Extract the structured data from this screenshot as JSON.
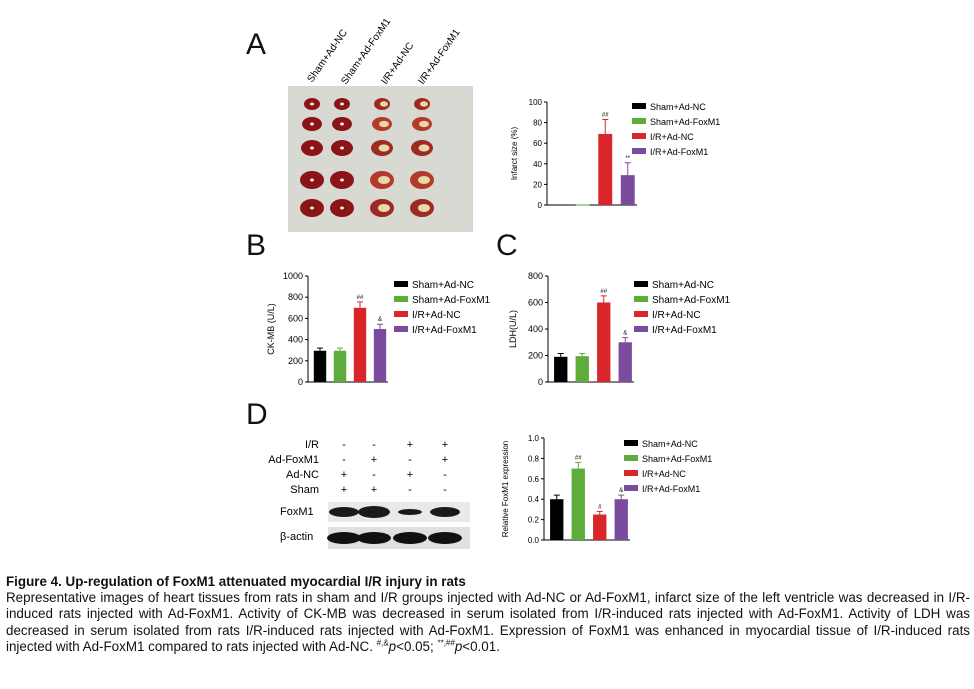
{
  "panels": {
    "a": "A",
    "b": "B",
    "c": "C",
    "d": "D"
  },
  "colors": {
    "sham_nc": "#000000",
    "sham_fox": "#5dac3c",
    "ir_nc": "#d8262a",
    "ir_fox": "#7b4c9e"
  },
  "heart_image": {
    "column_labels": [
      "Sham+Ad-NC",
      "Sham+Ad-FoxM1",
      "I/R+Ad-NC",
      "I/R+Ad-FoxM1"
    ]
  },
  "legend": [
    "Sham+Ad-NC",
    "Sham+Ad-FoxM1",
    "I/R+Ad-NC",
    "I/R+Ad-FoxM1"
  ],
  "chart_data": [
    {
      "type": "bar",
      "ylabel": "Infarct size (%)",
      "categories": [
        "Sham+Ad-NC",
        "Sham+Ad-FoxM1",
        "I/R+Ad-NC",
        "I/R+Ad-FoxM1"
      ],
      "values": [
        0.5,
        0.5,
        69,
        29
      ],
      "errors": [
        0,
        0,
        14,
        12
      ],
      "annotations": [
        "",
        "",
        "##",
        "**"
      ],
      "ylim": [
        0,
        100
      ],
      "yticks": [
        "0",
        "20",
        "40",
        "60",
        "80",
        "100"
      ]
    },
    {
      "type": "bar",
      "ylabel": "CK-MB (U/L)",
      "categories": [
        "Sham+Ad-NC",
        "Sham+Ad-FoxM1",
        "I/R+Ad-NC",
        "I/R+Ad-FoxM1"
      ],
      "values": [
        295,
        295,
        700,
        500
      ],
      "errors": [
        25,
        25,
        55,
        45
      ],
      "annotations": [
        "",
        "",
        "##",
        "&"
      ],
      "ylim": [
        0,
        1000
      ],
      "yticks": [
        "0",
        "200",
        "400",
        "600",
        "800",
        "1000"
      ]
    },
    {
      "type": "bar",
      "ylabel": "LDH(U/L)",
      "categories": [
        "Sham+Ad-NC",
        "Sham+Ad-FoxM1",
        "I/R+Ad-NC",
        "I/R+Ad-FoxM1"
      ],
      "values": [
        190,
        195,
        600,
        300
      ],
      "errors": [
        25,
        20,
        50,
        35
      ],
      "annotations": [
        "",
        "",
        "##",
        "&"
      ],
      "ylim": [
        0,
        800
      ],
      "yticks": [
        "0",
        "200",
        "400",
        "600",
        "800"
      ]
    },
    {
      "type": "bar",
      "ylabel": "Relative FoxM1 expression",
      "categories": [
        "Sham+Ad-NC",
        "Sham+Ad-FoxM1",
        "I/R+Ad-NC",
        "I/R+Ad-FoxM1"
      ],
      "values": [
        0.4,
        0.7,
        0.25,
        0.4
      ],
      "errors": [
        0.04,
        0.06,
        0.03,
        0.04
      ],
      "annotations": [
        "",
        "##",
        "#",
        "&"
      ],
      "ylim": [
        0,
        1.0
      ],
      "yticks": [
        "0.0",
        "0.2",
        "0.4",
        "0.6",
        "0.8",
        "1.0"
      ]
    }
  ],
  "western": {
    "row_labels": [
      "I/R",
      "Ad-FoxM1",
      "Ad-NC",
      "Sham"
    ],
    "signs": [
      [
        "-",
        "-",
        "+",
        "+"
      ],
      [
        "-",
        "+",
        "-",
        "+"
      ],
      [
        "+",
        "-",
        "+",
        "-"
      ],
      [
        "+",
        "+",
        "-",
        "-"
      ]
    ],
    "bands": [
      "FoxM1",
      "β-actin"
    ]
  },
  "caption": {
    "title": "Figure 4. Up-regulation of FoxM1 attenuated myocardial I/R injury in rats",
    "body": "Representative images of heart tissues from rats in sham and I/R groups injected with Ad-NC or Ad-FoxM1, infarct size of the left ventricle was decreased in I/R-induced rats injected with Ad-FoxM1. Activity of CK-MB was decreased in serum isolated from I/R-induced rats injected with Ad-FoxM1. Activity of LDH was decreased in serum isolated from rats I/R-induced rats injected with Ad-FoxM1. Expression of FoxM1 was enhanced in myocardial tissue of I/R-induced rats injected with Ad-FoxM1 compared to rats injected with Ad-NC.",
    "sig1_marks": "#,&",
    "sig1_p": "p",
    "sig1_val": "<0.05;",
    "sig2_marks": "**,##",
    "sig2_p": "p",
    "sig2_val": "<0.01."
  }
}
